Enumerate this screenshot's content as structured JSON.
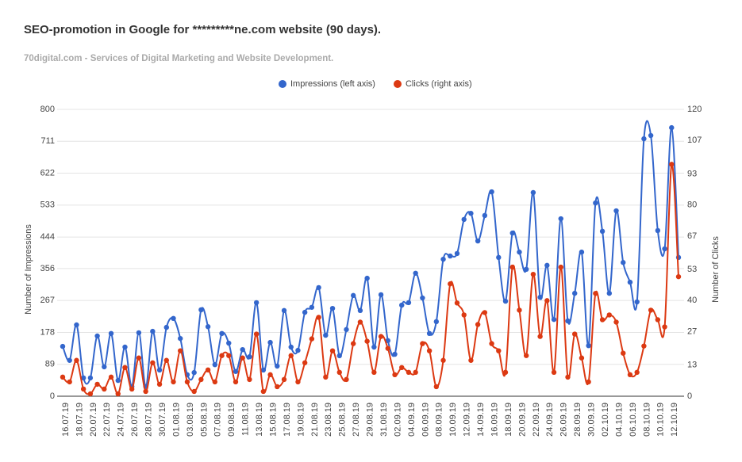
{
  "chart_data": {
    "type": "line",
    "title": "SEO-promotion in Google for *********ne.com website (90 days).",
    "subtitle": "70digital.com - Services of Digital Marketing and Website Development.",
    "y_label": "Number of Impressions",
    "y2_label": "Number of Clicks",
    "legend": "top",
    "grid": true,
    "categories": [
      "16.07.19",
      null,
      "18.07.19",
      null,
      "20.07.19",
      null,
      "22.07.19",
      null,
      "24.07.19",
      null,
      "26.07.19",
      null,
      "28.07.19",
      null,
      "30.07.19",
      null,
      "01.08.19",
      null,
      "03.08.19",
      null,
      "05.08.19",
      null,
      "07.08.19",
      null,
      "09.08.19",
      null,
      "11.08.19",
      null,
      "13.08.19",
      null,
      "15.08.19",
      null,
      "17.08.19",
      null,
      "19.08.19",
      null,
      "21.08.19",
      null,
      "23.08.19",
      null,
      "25.08.19",
      null,
      "27.08.19",
      null,
      "29.08.19",
      null,
      "31.08.19",
      null,
      "02.09.19",
      null,
      "04.09.19",
      null,
      "06.09.19",
      null,
      "08.09.19",
      null,
      "10.09.19",
      null,
      "12.09.19",
      null,
      "14.09.19",
      null,
      "16.09.19",
      null,
      "18.09.19",
      null,
      "20.09.19",
      null,
      "22.09.19",
      null,
      "24.09.19",
      null,
      "26.09.19",
      null,
      "28.09.19",
      null,
      "30.09.19",
      null,
      "02.10.19",
      null,
      "04.10.19",
      null,
      "06.10.19",
      null,
      "08.10.19",
      null,
      "10.10.19",
      null,
      "12.10.19",
      null
    ],
    "ylim": [
      0,
      800
    ],
    "yticks": [
      0,
      89,
      178,
      267,
      356,
      444,
      533,
      622,
      711,
      800
    ],
    "y2lim": [
      0,
      120
    ],
    "y2ticks": [
      0,
      13,
      27,
      40,
      53,
      67,
      80,
      93,
      107,
      120
    ],
    "series": [
      {
        "name": "Impressions (left axis)",
        "color": "#3366cc",
        "axis": "y",
        "values": [
          139,
          100,
          199,
          51,
          51,
          168,
          82,
          175,
          44,
          137,
          27,
          177,
          27,
          181,
          73,
          192,
          217,
          161,
          60,
          66,
          241,
          194,
          88,
          175,
          148,
          69,
          130,
          110,
          261,
          73,
          150,
          84,
          239,
          137,
          128,
          234,
          248,
          303,
          170,
          245,
          113,
          186,
          281,
          239,
          329,
          137,
          283,
          155,
          117,
          254,
          261,
          343,
          274,
          175,
          208,
          382,
          391,
          398,
          493,
          510,
          433,
          504,
          570,
          387,
          265,
          455,
          402,
          354,
          568,
          276,
          365,
          214,
          495,
          210,
          287,
          402,
          141,
          539,
          460,
          287,
          517,
          373,
          318,
          263,
          718,
          727,
          462,
          411,
          749,
          387
        ]
      },
      {
        "name": "Clicks (right axis)",
        "color": "#dc3912",
        "axis": "y2",
        "values": [
          8,
          6,
          15,
          3,
          1,
          5,
          3,
          8,
          1,
          12,
          3,
          16,
          2,
          14,
          5,
          15,
          6,
          19,
          6,
          2,
          7,
          11,
          6,
          17,
          17,
          6,
          16,
          7,
          26,
          2,
          9,
          4,
          7,
          17,
          6,
          14,
          24,
          33,
          8,
          19,
          10,
          7,
          22,
          31,
          23,
          10,
          25,
          20,
          9,
          12,
          10,
          10,
          22,
          19,
          4,
          15,
          47,
          39,
          34,
          15,
          30,
          35,
          22,
          19,
          10,
          54,
          36,
          17,
          51,
          25,
          40,
          10,
          54,
          8,
          26,
          16,
          6,
          43,
          32,
          34,
          31,
          18,
          9,
          10,
          21,
          36,
          32,
          29,
          97,
          50
        ]
      }
    ]
  }
}
